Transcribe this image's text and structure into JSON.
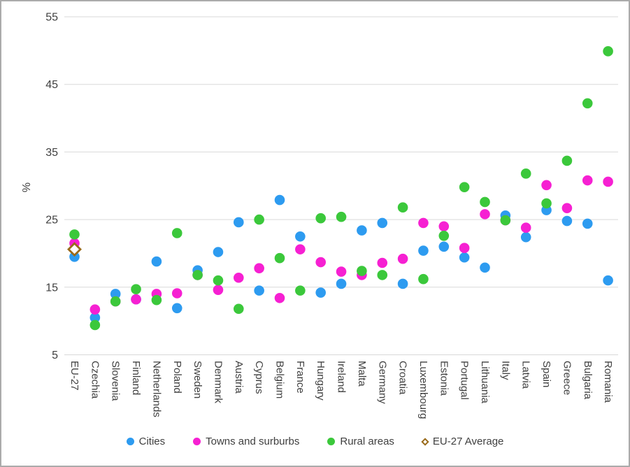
{
  "chart_data": {
    "type": "scatter",
    "title": "",
    "xlabel": "",
    "ylabel": "%",
    "ylim": [
      5,
      57
    ],
    "y_ticks": [
      5,
      15,
      25,
      35,
      45,
      55
    ],
    "grid": "horizontal",
    "gridline_color": "#D9D9D9",
    "text_color": "#3F3F3F",
    "legend_position": "bottom",
    "categories": [
      "EU-27",
      "Czechia",
      "Slovenia",
      "Finland",
      "Netherlands",
      "Poland",
      "Sweden",
      "Denmark",
      "Austria",
      "Cyprus",
      "Belgium",
      "France",
      "Hungary",
      "Ireland",
      "Malta",
      "Germany",
      "Croatia",
      "Luxembourg",
      "Estonia",
      "Portugal",
      "Lithuania",
      "Italy",
      "Latvia",
      "Spain",
      "Greece",
      "Bulgaria",
      "Romania"
    ],
    "series": [
      {
        "name": "Cities",
        "marker": "circle",
        "color": "#2D9BF0",
        "values": [
          19.5,
          10.5,
          14.0,
          13.2,
          18.8,
          11.9,
          17.5,
          20.2,
          24.6,
          14.5,
          27.9,
          22.5,
          14.2,
          15.5,
          23.4,
          24.5,
          15.5,
          20.4,
          21.0,
          19.4,
          17.9,
          25.6,
          22.4,
          26.4,
          24.8,
          24.4,
          16.0
        ]
      },
      {
        "name": "Towns and surburbs",
        "marker": "circle",
        "color": "#F620D2",
        "values": [
          21.5,
          11.7,
          12.9,
          13.2,
          14.0,
          14.1,
          16.8,
          14.6,
          16.4,
          17.8,
          13.4,
          20.6,
          18.7,
          17.3,
          16.8,
          18.6,
          19.2,
          24.5,
          24.0,
          20.8,
          25.8,
          24.9,
          23.8,
          30.1,
          26.7,
          30.8,
          30.6
        ]
      },
      {
        "name": "Rural areas",
        "marker": "circle",
        "color": "#3BC83B",
        "values": [
          22.8,
          9.4,
          12.9,
          14.7,
          13.1,
          23.0,
          16.8,
          16.0,
          11.8,
          25.0,
          19.3,
          14.5,
          25.2,
          25.4,
          17.4,
          16.8,
          26.8,
          16.2,
          22.6,
          29.8,
          27.6,
          24.9,
          31.8,
          27.4,
          33.7,
          42.2,
          49.9
        ]
      },
      {
        "name": "EU-27 Average",
        "marker": "diamond-outline",
        "color": "#9A6B1B",
        "values": [
          20.6,
          null,
          null,
          null,
          null,
          null,
          null,
          null,
          null,
          null,
          null,
          null,
          null,
          null,
          null,
          null,
          null,
          null,
          null,
          null,
          null,
          null,
          null,
          null,
          null,
          null,
          null
        ]
      }
    ]
  }
}
